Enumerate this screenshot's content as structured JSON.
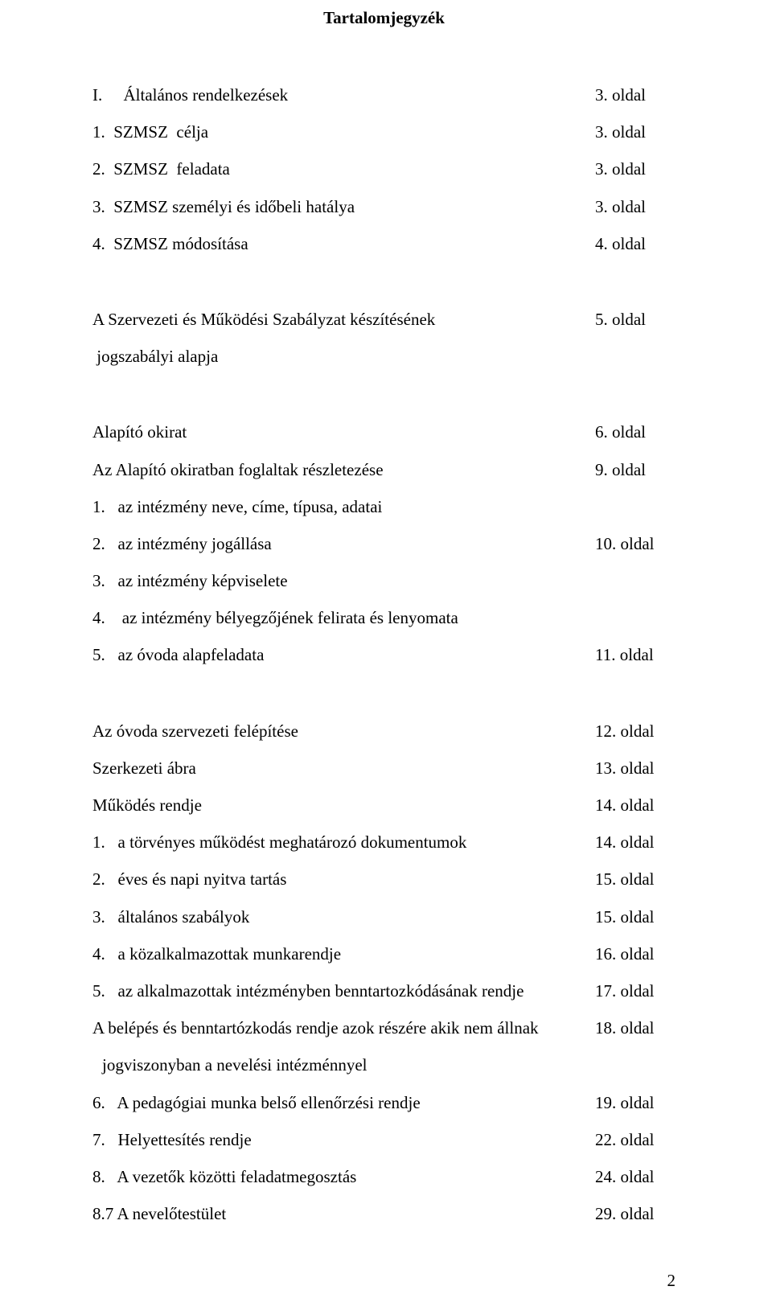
{
  "title": "Tartalomjegyzék",
  "typography": {
    "font_family": "Times New Roman",
    "body_fontsize_pt": 16,
    "title_fontsize_pt": 16,
    "line_height": 2.2,
    "text_color": "#000000",
    "background_color": "#ffffff"
  },
  "sections": [
    {
      "rows": [
        {
          "label": "I.     Általános rendelkezések",
          "page": "3. oldal"
        },
        {
          "label": "1.  SZMSZ  célja",
          "page": "3. oldal"
        },
        {
          "label": "2.  SZMSZ  feladata",
          "page": "3. oldal"
        },
        {
          "label": "3.  SZMSZ személyi és időbeli hatálya",
          "page": "3. oldal"
        },
        {
          "label": "4.  SZMSZ módosítása",
          "page": "4. oldal"
        }
      ]
    },
    {
      "rows": [
        {
          "label": "A Szervezeti és Működési Szabályzat készítésének",
          "page": "5. oldal"
        },
        {
          "label": " jogszabályi alapja",
          "page": ""
        }
      ]
    },
    {
      "rows": [
        {
          "label": "Alapító okirat",
          "page": "6. oldal"
        },
        {
          "label": "Az Alapító okiratban foglaltak részletezése",
          "page": "9. oldal"
        },
        {
          "label": "1.   az intézmény neve, címe, típusa, adatai",
          "page": ""
        },
        {
          "label": "2.   az intézmény jogállása",
          "page": "10. oldal"
        },
        {
          "label": "3.   az intézmény képviselete",
          "page": ""
        },
        {
          "label": "4.    az intézmény bélyegzőjének felirata és lenyomata",
          "page": ""
        },
        {
          "label": "5.   az óvoda alapfeladata",
          "page": "11. oldal"
        }
      ]
    },
    {
      "rows": [
        {
          "label": "Az óvoda szervezeti felépítése",
          "page": "12. oldal"
        },
        {
          "label": "Szerkezeti ábra",
          "page": "13. oldal"
        },
        {
          "label": "Működés rendje",
          "page": "14. oldal"
        },
        {
          "label": "1.   a törvényes működést meghatározó dokumentumok",
          "page": "14. oldal"
        },
        {
          "label": "2.   éves és napi nyitva tartás",
          "page": "15. oldal"
        },
        {
          "label": "3.   általános szabályok",
          "page": "15. oldal"
        },
        {
          "label": "4.   a közalkalmazottak munkarendje",
          "page": "16. oldal"
        },
        {
          "label": "5.   az alkalmazottak intézményben benntartozkódásának rendje",
          "page": " 17. oldal"
        },
        {
          "label": "A belépés és benntartózkodás rendje azok részére akik nem állnak",
          "page": "18. oldal",
          "continuation": " jogviszonyban a nevelési intézménnyel"
        },
        {
          "label": "6.   A pedagógiai munka belső ellenőrzési rendje",
          "page": "19. oldal"
        },
        {
          "label": "7.   Helyettesítés rendje",
          "page": "22. oldal"
        },
        {
          "label": "8.   A vezetők közötti feladatmegosztás",
          "page": "24. oldal"
        },
        {
          "label": "8.7 A nevelőtestület",
          "page": "29. oldal"
        }
      ]
    }
  ],
  "page_number": "2"
}
